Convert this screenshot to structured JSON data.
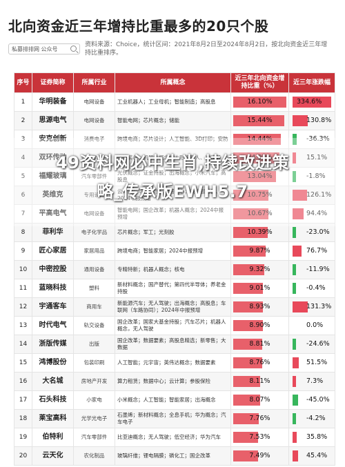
{
  "title": "北向资金近三年增持比重最多的20只个股",
  "brand": "私募排排网 公众号",
  "source": "资料来源：Choice，统计区间：2021年8月2日至2024年8月2日，按北向资金近三年增持比重排序。",
  "headers": {
    "rank": "序号",
    "name": "证券简称",
    "industry": "所属行业",
    "concept": "所属概念",
    "ratio": "近三年北向资金增持比重（%）",
    "change": "近三年涨跌幅"
  },
  "colors": {
    "header": "#c9333a",
    "ratio_bar": "#e8606a",
    "up_bar": "#e8495a",
    "down_bar": "#37b65c"
  },
  "rows": [
    {
      "rank": "1",
      "name": "华明装备",
      "industry": "电网设备",
      "concept": "工业机器人；工业母机；智能制造；高股息",
      "ratio": "16.10%",
      "ratio_value": 16.1,
      "change": "334.6%",
      "change_value": 334.6
    },
    {
      "rank": "2",
      "name": "思源电气",
      "industry": "电网设备",
      "concept": "智能电网；芯片概念；储能",
      "ratio": "15.44%",
      "ratio_value": 15.44,
      "change": "130.8%",
      "change_value": 130.8
    },
    {
      "rank": "3",
      "name": "安克创新",
      "industry": "消费电子",
      "concept": "跨境电商；芯片设计；人工智能、3D打印；安防",
      "ratio": "14.44%",
      "ratio_value": 14.44,
      "change": "-36.3%",
      "change_value": -36.3
    },
    {
      "rank": "4",
      "name": "双环传动",
      "industry": "汽车零部件",
      "concept": "高端装备；机器人概念；人形机器人、减速器",
      "ratio": "14.02%",
      "ratio_value": 14.02,
      "change": "15.1%",
      "change_value": 15.1
    },
    {
      "rank": "5",
      "name": "福耀玻璃",
      "industry": "汽车零部件",
      "concept": "光伏概念；证金持股；出海概念；小米汽车；高股息",
      "ratio": "13.04%",
      "ratio_value": 13.04,
      "change": "-1.8%",
      "change_value": -1.8
    },
    {
      "rank": "6",
      "name": "英维克",
      "industry": "专用设备",
      "concept": "云计算；华为概念；数据中心；液冷服务器、2024中报预增",
      "ratio": "10.75%",
      "ratio_value": 10.75,
      "change": "126.1%",
      "change_value": 126.1
    },
    {
      "rank": "7",
      "name": "平高电气",
      "industry": "电网设备",
      "concept": "智能电网；国企改革；机器人概念；2024中报预增",
      "ratio": "10.67%",
      "ratio_value": 10.67,
      "change": "94.4%",
      "change_value": 94.4
    },
    {
      "rank": "8",
      "name": "菲利华",
      "industry": "电子化学品",
      "concept": "芯片概念；军工；光刻胶",
      "ratio": "10.39%",
      "ratio_value": 10.39,
      "change": "-23.0%",
      "change_value": -23.0
    },
    {
      "rank": "9",
      "name": "匠心家居",
      "industry": "家居用品",
      "concept": "跨境电商；智能家居；2024中报预增",
      "ratio": "9.87%",
      "ratio_value": 9.87,
      "change": "76.7%",
      "change_value": 76.7
    },
    {
      "rank": "10",
      "name": "中密控股",
      "industry": "通用设备",
      "concept": "专精特新；机器人概念；核电",
      "ratio": "9.32%",
      "ratio_value": 9.32,
      "change": "-11.9%",
      "change_value": -11.9
    },
    {
      "rank": "11",
      "name": "蓝晓科技",
      "industry": "塑料",
      "concept": "新材料概念；国产替代；第四代半导体；养老金持股",
      "ratio": "9.01%",
      "ratio_value": 9.01,
      "change": "-0.4%",
      "change_value": -0.4
    },
    {
      "rank": "12",
      "name": "宇通客车",
      "industry": "商用车",
      "concept": "新能源汽车；无人驾驶；出海概念；高股息；车联网（车路协同）；2024年中报预增",
      "ratio": "8.93%",
      "ratio_value": 8.93,
      "change": "131.3%",
      "change_value": 131.3
    },
    {
      "rank": "13",
      "name": "时代电气",
      "industry": "轨交设备",
      "concept": "国企改革；国家大基金持股；汽车芯片；机器人概念，无人驾驶",
      "ratio": "8.90%",
      "ratio_value": 8.9,
      "change": "0.0%",
      "change_value": 0.0
    },
    {
      "rank": "14",
      "name": "浙版传媒",
      "industry": "出版",
      "concept": "国企改革；数据要素；高股息精选；新零售；大数据",
      "ratio": "8.81%",
      "ratio_value": 8.81,
      "change": "-24.6%",
      "change_value": -24.6
    },
    {
      "rank": "15",
      "name": "鸿博股份",
      "industry": "包装印刷",
      "concept": "人工智能；元宇宙；英伟达概念；数据要素",
      "ratio": "8.76%",
      "ratio_value": 8.76,
      "change": "51.5%",
      "change_value": 51.5
    },
    {
      "rank": "16",
      "name": "大名城",
      "industry": "房地产开发",
      "concept": "算力租赁；数据中心；云计算；参股保险",
      "ratio": "8.11%",
      "ratio_value": 8.11,
      "change": "7.3%",
      "change_value": 7.3
    },
    {
      "rank": "17",
      "name": "石头科技",
      "industry": "小家电",
      "concept": "小米概念；人工智能；智能家居；出海概念",
      "ratio": "8.07%",
      "ratio_value": 8.07,
      "change": "-45.0%",
      "change_value": -45.0
    },
    {
      "rank": "18",
      "name": "莱宝高科",
      "industry": "光学光电子",
      "concept": "石墨烯；新材料概念；全息手机；华为概念；汽车电子",
      "ratio": "7.76%",
      "ratio_value": 7.76,
      "change": "-4.2%",
      "change_value": -4.2
    },
    {
      "rank": "19",
      "name": "伯特利",
      "industry": "汽车零部件",
      "concept": "比亚迪概念；无人驾驶；低空经济；华为汽车",
      "ratio": "7.53%",
      "ratio_value": 7.53,
      "change": "35.8%",
      "change_value": 35.8
    },
    {
      "rank": "20",
      "name": "云天化",
      "industry": "农化制品",
      "concept": "玻璃纤维；锂电隔膜；磷化工；国企改革",
      "ratio": "7.49%",
      "ratio_value": 7.49,
      "change": "45.4%",
      "change_value": 45.4
    }
  ],
  "watermark": {
    "line1": "49资料网必中生肖,持续改进策",
    "line2": "略_传承版EWH5.7"
  }
}
